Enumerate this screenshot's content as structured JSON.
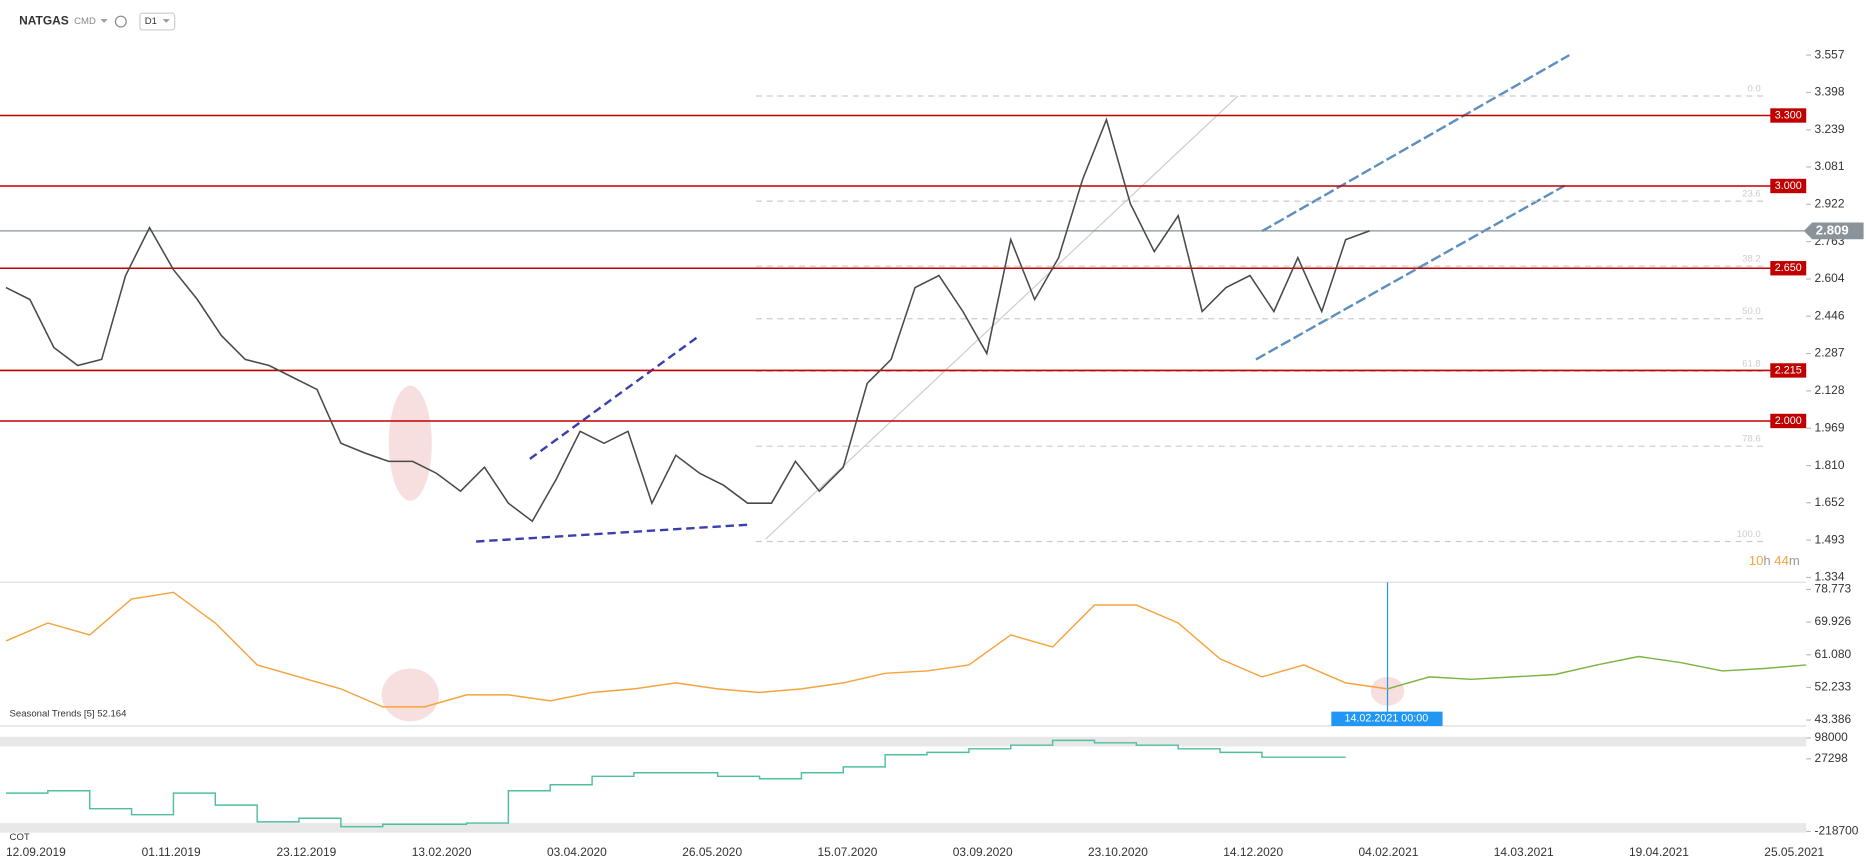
{
  "header": {
    "symbol": "NATGAS",
    "market": "CMD",
    "interval": "D1"
  },
  "countdown": {
    "hours": "10",
    "hours_unit": "h",
    "minutes": "44",
    "minutes_unit": "m"
  },
  "chart_data": [
    {
      "type": "line",
      "color": "#4a4a4a",
      "xticks": [
        "12.09.2019",
        "01.11.2019",
        "23.12.2019",
        "13.02.2020",
        "03.04.2020",
        "26.05.2020",
        "15.07.2020",
        "03.09.2020",
        "23.10.2020",
        "14.12.2020",
        "04.02.2021",
        "14.03.2021",
        "19.04.2021",
        "25.05.2021"
      ],
      "values": [
        2.568,
        2.517,
        2.313,
        2.236,
        2.262,
        2.619,
        2.823,
        2.644,
        2.517,
        2.364,
        2.262,
        2.236,
        2.185,
        2.134,
        1.905,
        1.864,
        1.828,
        1.828,
        1.777,
        1.701,
        1.803,
        1.65,
        1.573,
        1.752,
        1.956,
        1.905,
        1.956,
        1.65,
        1.854,
        1.777,
        1.726,
        1.65,
        1.65,
        1.828,
        1.701,
        1.803,
        2.16,
        2.262,
        2.568,
        2.619,
        2.466,
        2.287,
        2.772,
        2.517,
        2.695,
        3.027,
        3.282,
        2.925,
        2.721,
        2.874,
        2.466,
        2.568,
        2.619,
        2.466,
        2.695,
        2.466,
        2.772,
        2.809
      ],
      "ylim": [
        1.334,
        3.557
      ],
      "yticks": [
        1.334,
        1.493,
        1.652,
        {
          "value": 1.81,
          "label": "1.810"
        },
        1.969,
        2.128,
        2.287,
        2.446,
        2.604,
        2.763,
        2.922,
        3.081,
        3.239,
        3.398,
        3.557
      ],
      "levels": [
        {
          "value": 3.3,
          "label": "3.300"
        },
        {
          "value": 3.0,
          "label": "3.000"
        },
        {
          "value": 2.65,
          "label": "2.650"
        },
        {
          "value": 2.215,
          "label": "2.215"
        },
        {
          "value": 2.0,
          "label": "2.000"
        }
      ],
      "level_color": "#c00000",
      "last_price": 2.809,
      "fib": {
        "high": 3.383,
        "low": 1.487,
        "levels": [
          {
            "value": 0,
            "label": "0.0"
          },
          23.6,
          38.2,
          {
            "value": 50,
            "label": "50.0"
          },
          61.8,
          78.6,
          {
            "value": 100,
            "label": "100.0"
          }
        ]
      }
    },
    {
      "type": "line",
      "label": "Seasonal  Trends  [5]  52.164",
      "series": [
        {
          "color": "#f5a33c",
          "values": [
            64.81,
            69.68,
            66.44,
            76.17,
            78.0,
            69.68,
            58.32,
            55.07,
            51.82,
            46.95,
            46.95,
            50.2,
            50.2,
            48.57,
            50.85,
            51.82,
            53.45,
            51.82,
            50.85,
            51.82,
            53.45,
            56.04,
            56.69,
            58.32,
            66.44,
            63.19,
            74.55,
            74.55,
            69.68,
            59.94,
            55.07,
            58.32,
            53.45,
            51.82,
            null,
            null,
            null,
            null,
            null,
            null,
            null,
            null,
            null,
            null
          ]
        },
        {
          "color": "#7cb342",
          "values": [
            null,
            null,
            null,
            null,
            null,
            null,
            null,
            null,
            null,
            null,
            null,
            null,
            null,
            null,
            null,
            null,
            null,
            null,
            null,
            null,
            null,
            null,
            null,
            null,
            null,
            null,
            null,
            null,
            null,
            null,
            null,
            null,
            null,
            51.82,
            55.07,
            54.42,
            55.07,
            55.72,
            58.32,
            60.59,
            58.97,
            56.69,
            57.34,
            58.32
          ]
        }
      ],
      "ylim": [
        43.386,
        78.773
      ],
      "yticks": [
        43.386,
        52.233,
        {
          "value": 61.08,
          "label": "61.080"
        },
        69.926,
        78.773
      ],
      "marker_label": "14.02.2021 00:00"
    },
    {
      "type": "step",
      "label": "COT",
      "color": "#4fbf9f",
      "values": [
        -88760,
        -80640,
        -141540,
        -161840,
        -88760,
        -129360,
        -186200,
        -174020,
        -202440,
        -194320,
        -194320,
        -190260,
        -80640,
        -60340,
        -31920,
        -19740,
        -19740,
        -31920,
        -40040,
        -19740,
        0,
        41160,
        49280,
        61460,
        73640,
        89880,
        81760,
        73640,
        61460,
        49280,
        33040,
        33040,
        33040
      ],
      "ylim": [
        -218700,
        98000
      ],
      "yticks": [
        -218700,
        27298,
        98000
      ]
    }
  ]
}
